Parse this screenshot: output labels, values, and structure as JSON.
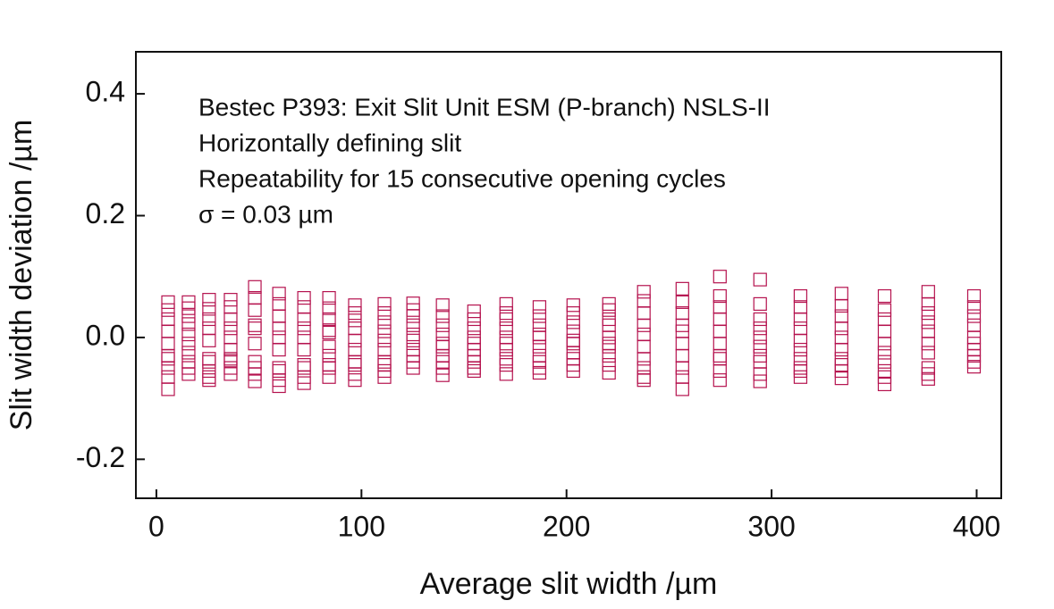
{
  "chart_data": {
    "type": "scatter",
    "annotations": [
      "Bestec P393: Exit Slit Unit ESM (P-branch)  NSLS-II",
      "Horizontally defining slit",
      "Repeatability for 15 consecutive opening cycles",
      "σ = 0.03 µm"
    ],
    "x_label": "Average slit width /µm",
    "y_label": "Slit width deviation /µm",
    "xlim": [
      -10,
      412
    ],
    "ylim": [
      -0.264,
      0.469
    ],
    "xticks": [
      0,
      100,
      200,
      300,
      400
    ],
    "yticks": [
      -0.2,
      {
        "value": 0,
        "label": "0.0"
      },
      0.2,
      0.4
    ],
    "color": "#b5124e",
    "x": [
      5.7,
      5.7,
      5.7,
      5.7,
      5.7,
      5.7,
      5.7,
      5.7,
      5.7,
      5.7,
      15.7,
      15.7,
      15.7,
      15.7,
      15.7,
      15.7,
      15.7,
      15.7,
      15.7,
      15.7,
      25.7,
      25.7,
      25.7,
      25.7,
      25.7,
      25.7,
      25.7,
      25.7,
      25.7,
      25.7,
      36.2,
      36.2,
      36.2,
      36.2,
      36.2,
      36.2,
      36.2,
      36.2,
      36.2,
      36.2,
      48,
      48,
      48,
      48,
      48,
      48,
      48,
      48,
      48,
      48,
      59.8,
      59.8,
      59.8,
      59.8,
      59.8,
      59.8,
      59.8,
      59.8,
      59.8,
      59.8,
      72,
      72,
      72,
      72,
      72,
      72,
      72,
      72,
      72,
      72,
      84.2,
      84.2,
      84.2,
      84.2,
      84.2,
      84.2,
      84.2,
      84.2,
      84.2,
      84.2,
      96.8,
      96.8,
      96.8,
      96.8,
      96.8,
      96.8,
      96.8,
      96.8,
      96.8,
      96.8,
      111.2,
      111.2,
      111.2,
      111.2,
      111.2,
      111.2,
      111.2,
      111.2,
      111.2,
      111.2,
      125.2,
      125.2,
      125.2,
      125.2,
      125.2,
      125.2,
      125.2,
      125.2,
      125.2,
      125.2,
      139.6,
      139.6,
      139.6,
      139.6,
      139.6,
      139.6,
      139.6,
      139.6,
      139.6,
      139.6,
      154.9,
      154.9,
      154.9,
      154.9,
      154.9,
      154.9,
      154.9,
      154.9,
      154.9,
      154.9,
      170.6,
      170.6,
      170.6,
      170.6,
      170.6,
      170.6,
      170.6,
      170.6,
      170.6,
      170.6,
      186.8,
      186.8,
      186.8,
      186.8,
      186.8,
      186.8,
      186.8,
      186.8,
      186.8,
      186.8,
      203.3,
      203.3,
      203.3,
      203.3,
      203.3,
      203.3,
      203.3,
      203.3,
      203.3,
      203.3,
      220.7,
      220.7,
      220.7,
      220.7,
      220.7,
      220.7,
      220.7,
      220.7,
      220.7,
      220.7,
      237.7,
      237.7,
      237.7,
      237.7,
      237.7,
      237.7,
      237.7,
      237.7,
      237.7,
      237.7,
      256.5,
      256.5,
      256.5,
      256.5,
      256.5,
      256.5,
      256.5,
      256.5,
      256.5,
      256.5,
      274.8,
      274.8,
      274.8,
      274.8,
      274.8,
      274.8,
      274.8,
      274.8,
      274.8,
      274.8,
      294.4,
      294.4,
      294.4,
      294.4,
      294.4,
      294.4,
      294.4,
      294.4,
      294.4,
      294.4,
      314.1,
      314.1,
      314.1,
      314.1,
      314.1,
      314.1,
      314.1,
      314.1,
      314.1,
      314.1,
      334.1,
      334.1,
      334.1,
      334.1,
      334.1,
      334.1,
      334.1,
      334.1,
      334.1,
      334.1,
      355.1,
      355.1,
      355.1,
      355.1,
      355.1,
      355.1,
      355.1,
      355.1,
      355.1,
      355.1,
      376.4,
      376.4,
      376.4,
      376.4,
      376.4,
      376.4,
      376.4,
      376.4,
      376.4,
      376.4,
      398.7,
      398.7,
      398.7,
      398.7,
      398.7,
      398.7,
      398.7,
      398.7,
      398.7,
      398.7
    ],
    "y": [
      0.058,
      0.045,
      0.03,
      0.01,
      -0.01,
      -0.03,
      -0.035,
      -0.05,
      -0.065,
      -0.085,
      0.058,
      0.048,
      0.035,
      0.022,
      0.005,
      -0.01,
      -0.025,
      -0.04,
      -0.05,
      -0.06,
      0.062,
      0.047,
      0.03,
      0.015,
      -0.005,
      -0.035,
      -0.04,
      -0.055,
      -0.065,
      -0.07,
      0.062,
      0.05,
      0.03,
      0.015,
      0.0,
      -0.02,
      -0.035,
      -0.038,
      -0.05,
      -0.06,
      0.083,
      0.065,
      0.045,
      0.02,
      0.015,
      -0.01,
      -0.04,
      -0.05,
      -0.06,
      -0.072,
      0.072,
      0.055,
      0.035,
      0.015,
      0.0,
      -0.02,
      -0.05,
      -0.055,
      -0.07,
      -0.08,
      0.065,
      0.05,
      0.03,
      0.015,
      0.0,
      -0.02,
      -0.045,
      -0.05,
      -0.065,
      -0.075,
      0.065,
      0.048,
      0.03,
      0.012,
      0.008,
      -0.015,
      -0.03,
      -0.045,
      -0.05,
      -0.065,
      0.053,
      0.04,
      0.028,
      0.015,
      -0.005,
      -0.02,
      -0.04,
      -0.045,
      -0.06,
      -0.07,
      0.055,
      0.04,
      0.025,
      0.01,
      -0.005,
      -0.02,
      -0.04,
      -0.045,
      -0.055,
      -0.065,
      0.056,
      0.045,
      0.035,
      0.02,
      0.005,
      -0.005,
      -0.02,
      -0.03,
      -0.04,
      -0.05,
      0.053,
      0.035,
      0.02,
      0.005,
      -0.01,
      -0.015,
      -0.03,
      -0.04,
      -0.05,
      -0.062,
      0.043,
      0.03,
      0.015,
      0.0,
      -0.01,
      -0.02,
      -0.03,
      -0.04,
      -0.05,
      -0.055,
      0.055,
      0.04,
      0.03,
      0.015,
      0.0,
      -0.01,
      -0.02,
      -0.035,
      -0.045,
      -0.06,
      0.05,
      0.035,
      0.02,
      0.005,
      0.0,
      -0.015,
      -0.03,
      -0.04,
      -0.05,
      -0.058,
      0.053,
      0.04,
      0.025,
      0.01,
      -0.005,
      -0.01,
      -0.025,
      -0.035,
      -0.045,
      -0.055,
      0.055,
      0.045,
      0.03,
      0.02,
      0.0,
      -0.01,
      -0.015,
      -0.03,
      -0.045,
      -0.058,
      0.075,
      0.06,
      0.04,
      0.02,
      0.005,
      -0.015,
      -0.035,
      -0.05,
      -0.065,
      -0.07,
      0.08,
      0.058,
      0.04,
      0.02,
      0.01,
      -0.01,
      -0.03,
      -0.05,
      -0.065,
      -0.085,
      0.1,
      0.068,
      0.05,
      0.03,
      0.01,
      -0.01,
      -0.03,
      -0.035,
      -0.055,
      -0.07,
      0.095,
      0.055,
      0.03,
      0.015,
      0.0,
      -0.015,
      -0.03,
      -0.04,
      -0.06,
      -0.072,
      0.068,
      0.05,
      0.03,
      0.015,
      -0.005,
      -0.02,
      -0.035,
      -0.05,
      -0.055,
      -0.065,
      0.072,
      0.052,
      0.035,
      0.015,
      0.0,
      -0.02,
      -0.035,
      -0.045,
      -0.055,
      -0.067,
      0.068,
      0.045,
      0.03,
      0.01,
      -0.01,
      -0.025,
      -0.04,
      -0.055,
      -0.065,
      -0.077,
      0.075,
      0.055,
      0.04,
      0.025,
      0.01,
      -0.01,
      -0.025,
      -0.05,
      -0.06,
      -0.068,
      0.068,
      0.05,
      0.035,
      0.02,
      0.0,
      -0.01,
      -0.02,
      -0.03,
      -0.04,
      -0.048
    ]
  }
}
